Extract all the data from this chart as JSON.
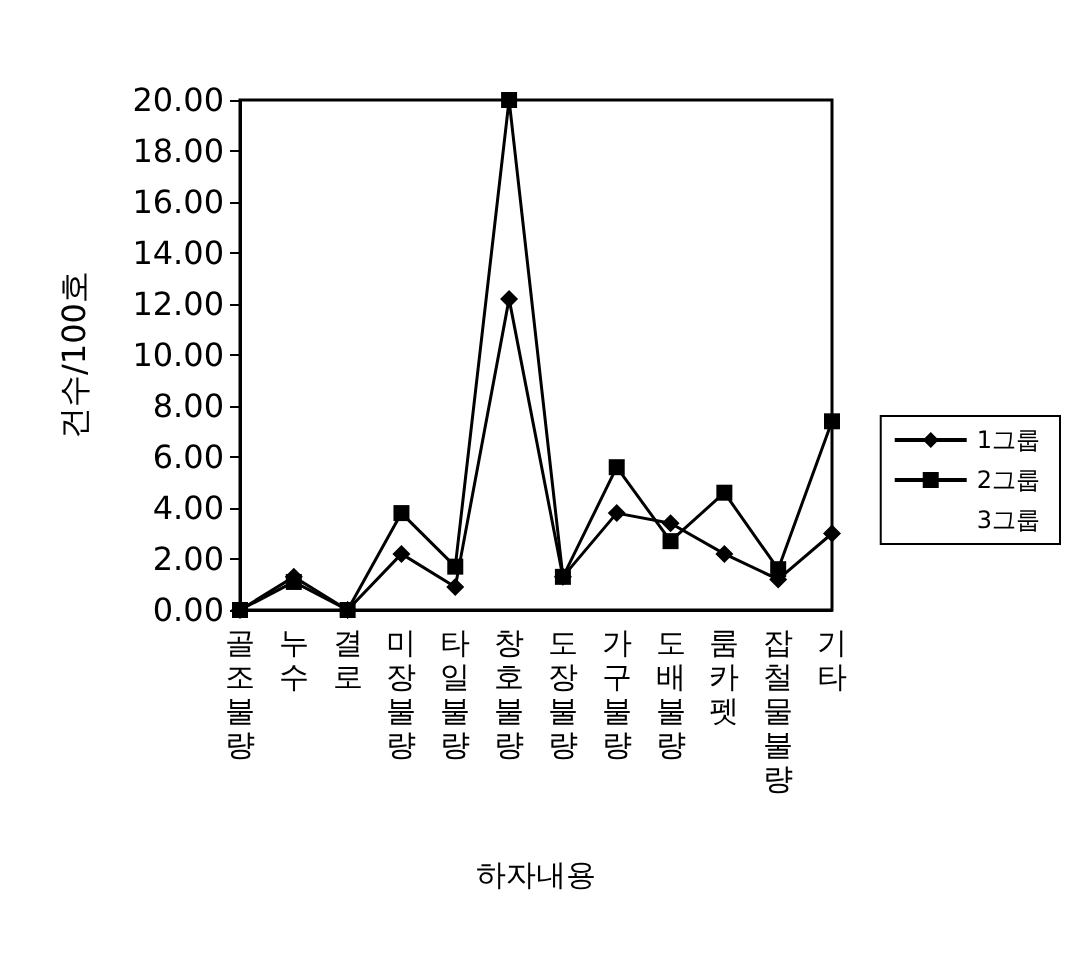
{
  "chart_data": {
    "type": "line",
    "xlabel": "하자내용",
    "ylabel": "건수/100호",
    "categories": [
      "골조불량",
      "누수",
      "결로",
      "미장불량",
      "타일불량",
      "창호불량",
      "도장불량",
      "가구불량",
      "도배불량",
      "룸카펫",
      "잡철물불량",
      "기타"
    ],
    "series": [
      {
        "name": "1그룹",
        "color": "#000000",
        "marker": "diamond",
        "values": [
          0.0,
          1.3,
          0.0,
          2.2,
          0.9,
          12.2,
          1.3,
          3.8,
          3.4,
          2.2,
          1.2,
          3.0
        ]
      },
      {
        "name": "2그룹",
        "color": "#000000",
        "marker": "square",
        "values": [
          0.0,
          1.1,
          0.0,
          3.8,
          1.7,
          20.0,
          1.3,
          5.6,
          2.7,
          4.6,
          1.6,
          7.4
        ]
      },
      {
        "name": "3그룹",
        "marker": "none",
        "values": [
          null,
          null,
          null,
          null,
          null,
          null,
          null,
          null,
          null,
          null,
          null,
          null
        ]
      }
    ],
    "ylim": [
      0,
      20
    ],
    "yticks": [
      {
        "value": 0,
        "label": "0.00"
      },
      {
        "value": 2,
        "label": "2.00"
      },
      {
        "value": 4,
        "label": "4.00"
      },
      {
        "value": 6,
        "label": "6.00"
      },
      {
        "value": 8,
        "label": "8.00"
      },
      {
        "value": 10,
        "label": "10.00"
      },
      {
        "value": 12,
        "label": "12.00"
      },
      {
        "value": 14,
        "label": "14.00"
      },
      {
        "value": 16,
        "label": "16.00"
      },
      {
        "value": 18,
        "label": "18.00"
      },
      {
        "value": 20,
        "label": "20.00"
      }
    ],
    "grid": false,
    "legend": "right",
    "line_style": "solid"
  }
}
